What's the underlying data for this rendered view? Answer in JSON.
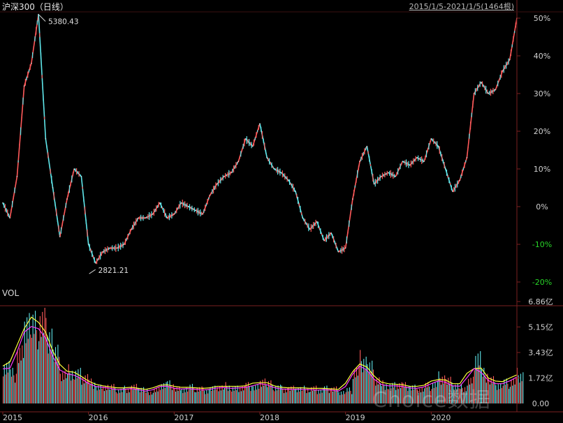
{
  "header": {
    "title": "沪深300（日线）",
    "range": "2015/1/5-2021/1/5(1464根)"
  },
  "volume_panel": {
    "label": "VOL"
  },
  "watermark": "Choice数据",
  "colors": {
    "up": "#ff5a5a",
    "down": "#5fe6ea",
    "axis": "#7a1f1f",
    "neg_tick": "#28d428",
    "text": "#d0d0d0",
    "vol_line1": "#ffff3c",
    "vol_line2": "#ff3cff"
  },
  "chart_data": [
    {
      "type": "line",
      "title": "沪深300（日线）",
      "x_tick_labels": [
        "2015",
        "2016",
        "2017",
        "2018",
        "2019",
        "2020"
      ],
      "y_unit": "%",
      "ylim": [
        -20,
        50
      ],
      "y_ticks": [
        50,
        40,
        30,
        20,
        10,
        0,
        -10,
        -20
      ],
      "y_tick_labels": [
        "50%",
        "40%",
        "30%",
        "20%",
        "10%",
        "0%",
        "-10%",
        "-20%"
      ],
      "annotations": [
        {
          "text": "5380.43",
          "x": "2015-06",
          "y": 51
        },
        {
          "text": "2821.21",
          "x": "2016-01",
          "y": -18
        }
      ],
      "series": [
        {
          "x": [
            "2015-01",
            "2015-02",
            "2015-03",
            "2015-04",
            "2015-05",
            "2015-06",
            "2015-07",
            "2015-08",
            "2015-09",
            "2015-10",
            "2015-11",
            "2015-12",
            "2016-01",
            "2016-02",
            "2016-03",
            "2016-04",
            "2016-05",
            "2016-06",
            "2016-07",
            "2016-08",
            "2016-09",
            "2016-10",
            "2016-11",
            "2016-12",
            "2017-01",
            "2017-02",
            "2017-03",
            "2017-04",
            "2017-05",
            "2017-06",
            "2017-07",
            "2017-08",
            "2017-09",
            "2017-10",
            "2017-11",
            "2017-12",
            "2018-01",
            "2018-02",
            "2018-03",
            "2018-04",
            "2018-05",
            "2018-06",
            "2018-07",
            "2018-08",
            "2018-09",
            "2018-10",
            "2018-11",
            "2018-12",
            "2019-01",
            "2019-02",
            "2019-03",
            "2019-04",
            "2019-05",
            "2019-06",
            "2019-07",
            "2019-08",
            "2019-09",
            "2019-10",
            "2019-11",
            "2019-12",
            "2020-01",
            "2020-02",
            "2020-03",
            "2020-04",
            "2020-05",
            "2020-06",
            "2020-07",
            "2020-08",
            "2020-09",
            "2020-10",
            "2020-11",
            "2020-12",
            "2021-01"
          ],
          "values": [
            1,
            -3,
            8,
            32,
            38,
            51,
            18,
            5,
            -8,
            2,
            10,
            8,
            -10,
            -15,
            -12,
            -11,
            -11,
            -10,
            -6,
            -3,
            -3,
            -2,
            1,
            -3,
            -2,
            1,
            0,
            -1,
            -2,
            3,
            6,
            8,
            9,
            12,
            18,
            16,
            22,
            13,
            10,
            9,
            7,
            4,
            -3,
            -6,
            -4,
            -9,
            -7,
            -12,
            -11,
            2,
            12,
            16,
            6,
            8,
            9,
            8,
            12,
            11,
            13,
            12,
            18,
            16,
            10,
            4,
            7,
            13,
            30,
            33,
            30,
            31,
            36,
            39,
            50
          ]
        }
      ]
    },
    {
      "type": "bar",
      "title": "VOL",
      "y_tick_labels": [
        "6.86亿",
        "5.15亿",
        "3.43亿",
        "1.72亿",
        "0.00"
      ],
      "ylim": [
        0,
        6.86
      ],
      "y_unit": "亿",
      "series": [
        {
          "x": [
            "2015-01",
            "2015-02",
            "2015-03",
            "2015-04",
            "2015-05",
            "2015-06",
            "2015-07",
            "2015-08",
            "2015-09",
            "2015-10",
            "2015-11",
            "2015-12",
            "2016-01",
            "2016-02",
            "2016-03",
            "2016-04",
            "2016-05",
            "2016-06",
            "2016-07",
            "2016-08",
            "2016-09",
            "2016-10",
            "2016-11",
            "2016-12",
            "2017-01",
            "2017-02",
            "2017-03",
            "2017-04",
            "2017-05",
            "2017-06",
            "2017-07",
            "2017-08",
            "2017-09",
            "2017-10",
            "2017-11",
            "2017-12",
            "2018-01",
            "2018-02",
            "2018-03",
            "2018-04",
            "2018-05",
            "2018-06",
            "2018-07",
            "2018-08",
            "2018-09",
            "2018-10",
            "2018-11",
            "2018-12",
            "2019-01",
            "2019-02",
            "2019-03",
            "2019-04",
            "2019-05",
            "2019-06",
            "2019-07",
            "2019-08",
            "2019-09",
            "2019-10",
            "2019-11",
            "2019-12",
            "2020-01",
            "2020-02",
            "2020-03",
            "2020-04",
            "2020-05",
            "2020-06",
            "2020-07",
            "2020-08",
            "2020-09",
            "2020-10",
            "2020-11",
            "2020-12",
            "2021-01"
          ],
          "values": [
            2.6,
            2.0,
            3.4,
            5.8,
            5.2,
            5.6,
            4.8,
            3.3,
            2.0,
            2.2,
            2.0,
            1.8,
            1.4,
            1.1,
            1.2,
            1.1,
            0.9,
            1.0,
            1.1,
            1.0,
            0.8,
            0.9,
            1.3,
            1.3,
            1.0,
            1.0,
            1.1,
            1.0,
            0.9,
            1.0,
            1.1,
            1.2,
            1.0,
            1.1,
            1.2,
            1.1,
            1.6,
            1.3,
            1.1,
            1.0,
            1.0,
            1.0,
            1.0,
            1.0,
            0.9,
            1.0,
            1.0,
            0.8,
            0.9,
            2.2,
            3.0,
            2.4,
            1.6,
            1.3,
            1.2,
            1.3,
            1.2,
            1.1,
            1.0,
            1.2,
            1.3,
            1.8,
            1.5,
            1.2,
            1.1,
            1.5,
            3.2,
            2.0,
            1.6,
            1.3,
            1.4,
            1.5,
            2.0
          ]
        }
      ]
    }
  ]
}
